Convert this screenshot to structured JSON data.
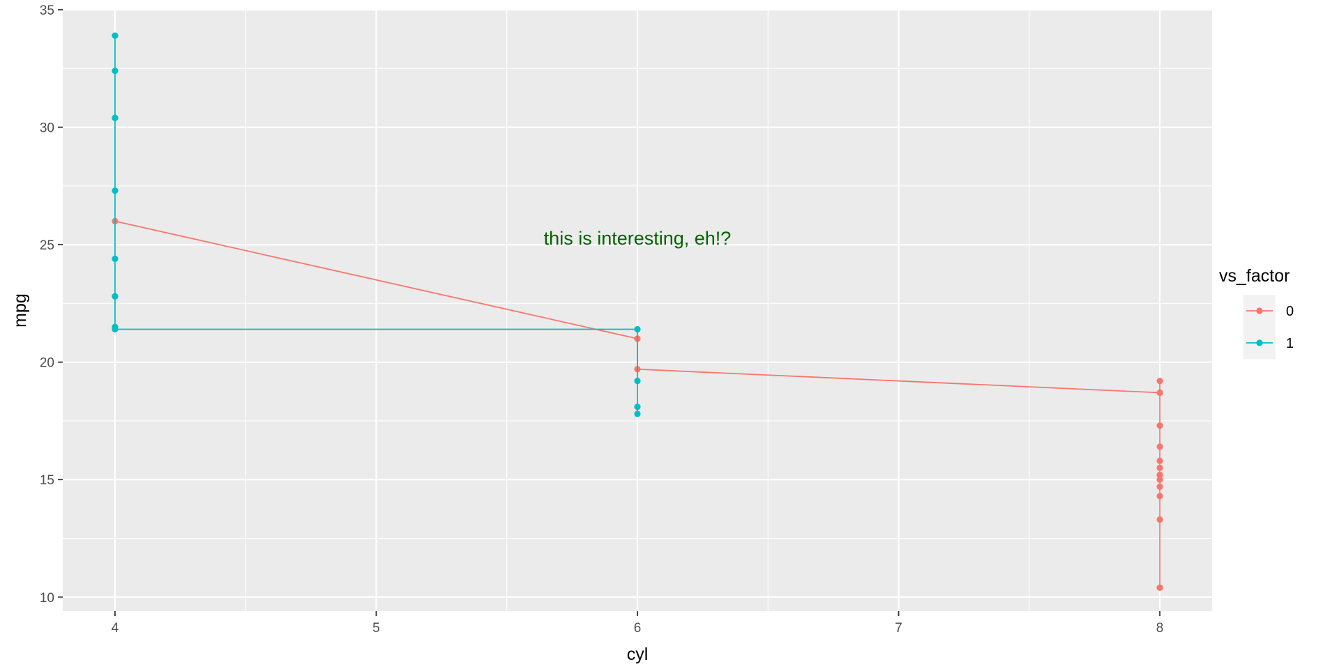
{
  "chart_data": {
    "type": "line",
    "title": "",
    "xlabel": "cyl",
    "ylabel": "mpg",
    "xlim": [
      3.8,
      8.2
    ],
    "ylim": [
      9.4,
      35.0
    ],
    "x_ticks": [
      4,
      5,
      6,
      7,
      8
    ],
    "y_ticks": [
      10,
      15,
      20,
      25,
      30,
      35
    ],
    "grid": true,
    "legend": {
      "title": "vs_factor",
      "placement": "right",
      "entries": [
        "0",
        "1"
      ]
    },
    "annotation": {
      "text": "this is interesting, eh!?",
      "x": 6.0,
      "y": 25.0,
      "color": "#006400"
    },
    "series": [
      {
        "name": "0",
        "color": "#F8766D",
        "points": [
          [
            4,
            26.0
          ],
          [
            6,
            21.0
          ],
          [
            6,
            21.0
          ],
          [
            6,
            19.7
          ],
          [
            8,
            18.7
          ],
          [
            8,
            14.3
          ],
          [
            8,
            16.4
          ],
          [
            8,
            17.3
          ],
          [
            8,
            15.2
          ],
          [
            8,
            10.4
          ],
          [
            8,
            10.4
          ],
          [
            8,
            14.7
          ],
          [
            8,
            15.5
          ],
          [
            8,
            15.2
          ],
          [
            8,
            13.3
          ],
          [
            8,
            19.2
          ],
          [
            8,
            15.8
          ],
          [
            8,
            15.0
          ]
        ]
      },
      {
        "name": "1",
        "color": "#00BFC4",
        "points": [
          [
            4,
            22.8
          ],
          [
            4,
            24.4
          ],
          [
            4,
            22.8
          ],
          [
            4,
            32.4
          ],
          [
            4,
            30.4
          ],
          [
            4,
            33.9
          ],
          [
            4,
            21.5
          ],
          [
            4,
            27.3
          ],
          [
            4,
            30.4
          ],
          [
            4,
            21.4
          ],
          [
            6,
            21.4
          ],
          [
            6,
            18.1
          ],
          [
            6,
            19.2
          ],
          [
            6,
            17.8
          ]
        ]
      }
    ]
  }
}
